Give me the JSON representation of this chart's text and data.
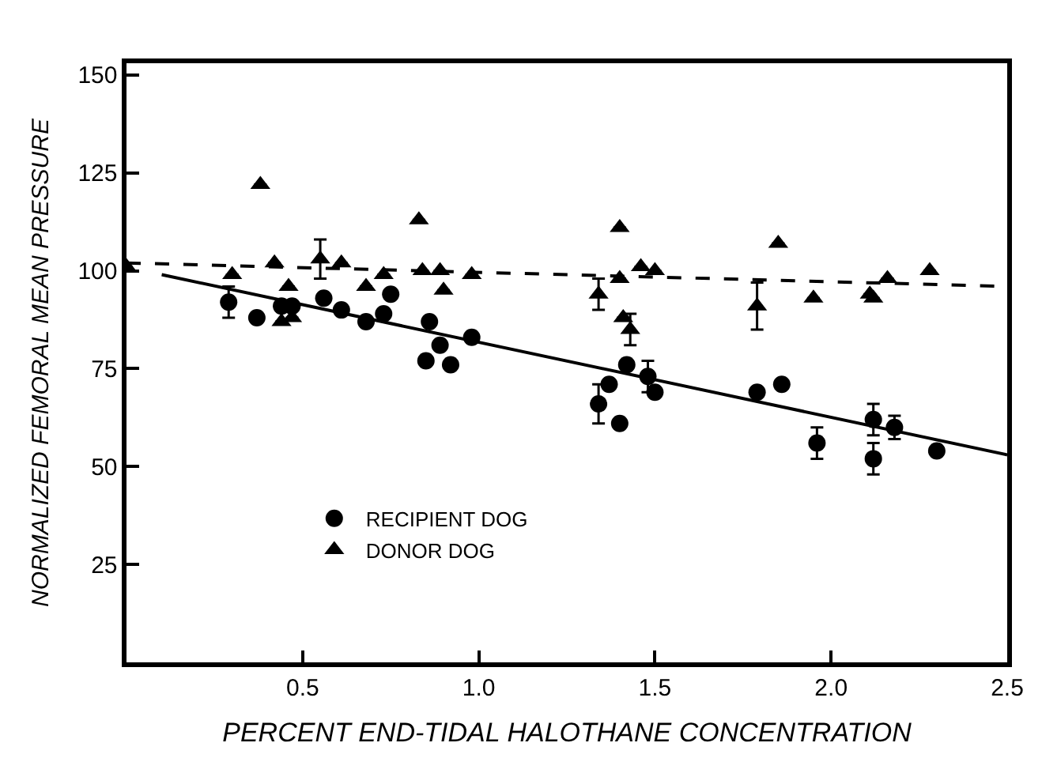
{
  "chart_data": {
    "type": "scatter",
    "xlabel": "PERCENT END-TIDAL HALOTHANE CONCENTRATION",
    "ylabel": "NORMALIZED FEMORAL MEAN PRESSURE",
    "xlim": [
      0,
      2.5
    ],
    "xticks": [
      0.5,
      {
        "value": 1,
        "label": "1.0"
      },
      1.5,
      {
        "value": 2,
        "label": "2.0"
      },
      2.5
    ],
    "ylim": [
      0,
      153
    ],
    "yticks": [
      25,
      50,
      75,
      100,
      125,
      150
    ],
    "legend": "bottom left",
    "series": [
      {
        "name": "RECIPIENT DOG",
        "color": "#000000",
        "marker": "circle",
        "x": [
          0.29,
          0.37,
          0.44,
          0.47,
          0.56,
          0.61,
          0.68,
          0.73,
          0.75,
          0.85,
          0.86,
          0.89,
          0.92,
          0.98,
          1.34,
          1.37,
          1.4,
          1.42,
          1.48,
          1.5,
          1.79,
          1.86,
          1.96,
          2.12,
          2.12,
          2.18,
          2.3
        ],
        "values": [
          92,
          88,
          91,
          91,
          93,
          90,
          87,
          89,
          94,
          77,
          87,
          81,
          76,
          83,
          66,
          71,
          61,
          76,
          73,
          69,
          69,
          71,
          56,
          62,
          52,
          60,
          54
        ],
        "errors": [
          4,
          null,
          null,
          null,
          null,
          null,
          null,
          null,
          null,
          null,
          null,
          null,
          null,
          null,
          5,
          null,
          null,
          null,
          4,
          null,
          null,
          null,
          4,
          4,
          4,
          3,
          null
        ]
      },
      {
        "name": "DONOR DOG",
        "color": "#000000",
        "marker": "triangle",
        "x": [
          0,
          0.3,
          0.38,
          0.42,
          0.44,
          0.46,
          0.47,
          0.55,
          0.61,
          0.68,
          0.73,
          0.83,
          0.84,
          0.89,
          0.9,
          0.98,
          1.34,
          1.4,
          1.4,
          1.41,
          1.43,
          1.46,
          1.5,
          1.79,
          1.85,
          1.95,
          2.11,
          2.12,
          2.16,
          2.28
        ],
        "values": [
          101,
          99,
          122,
          102,
          87,
          96,
          88,
          103,
          102,
          96,
          99,
          113,
          100,
          100,
          95,
          99,
          94,
          98,
          111,
          88,
          85,
          101,
          100,
          91,
          107,
          93,
          94,
          93,
          98,
          100
        ],
        "errors": [
          null,
          null,
          null,
          null,
          null,
          null,
          null,
          5,
          null,
          null,
          null,
          null,
          null,
          null,
          null,
          null,
          4,
          null,
          null,
          null,
          4,
          null,
          null,
          6,
          null,
          null,
          null,
          null,
          null,
          null
        ]
      },
      {
        "type": "line",
        "color": "#000000",
        "line_style": "solid",
        "x": [
          0.1,
          2.5
        ],
        "values": [
          99,
          53
        ]
      },
      {
        "type": "line",
        "color": "#000000",
        "line_style": "dashed",
        "x": [
          0,
          2.5
        ],
        "values": [
          102,
          96
        ]
      }
    ]
  }
}
